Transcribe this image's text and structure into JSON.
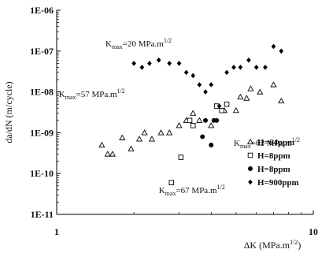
{
  "chart_data": {
    "type": "scatter",
    "xscale": "log",
    "yscale": "log",
    "xlim": [
      1,
      10
    ],
    "ylim": [
      1e-11,
      1e-06
    ],
    "xlabel": "ΔK (MPa.m",
    "xlabel_sup": "1/2",
    "xlabel_end": ")",
    "ylabel": "da/dN (m/cycle)",
    "x_ticks": [
      {
        "value": 1,
        "label": "1"
      },
      {
        "value": 10,
        "label": "10"
      }
    ],
    "y_ticks": [
      {
        "value": 1e-06,
        "label": "1E-06"
      },
      {
        "value": 1e-07,
        "label": "1E-07"
      },
      {
        "value": 1e-08,
        "label": "1E-08"
      },
      {
        "value": 1e-09,
        "label": "1E-09"
      },
      {
        "value": 1e-10,
        "label": "1E-10"
      },
      {
        "value": 1e-11,
        "label": "1E-11"
      }
    ],
    "grid": false,
    "legend_position": "bottom-right",
    "annotations": [
      {
        "main": "K",
        "sub": "max",
        "rest": "=20 MPa.m",
        "sup": "1/2",
        "x": 1.55,
        "y": 1.3e-07
      },
      {
        "main": "K",
        "sub": "max",
        "rest": "=57 MPa.m",
        "sup": "1/2",
        "x": 1.02,
        "y": 7.5e-09
      },
      {
        "main": "K",
        "sub": "max",
        "rest": "=62 MPa.m",
        "sup": "1/2",
        "x": 4.9,
        "y": 4.8e-10
      },
      {
        "main": "K",
        "sub": "max",
        "rest": "=67 MPa.m",
        "sup": "1/2",
        "x": 2.5,
        "y": 3.3e-11
      }
    ],
    "series": [
      {
        "name": "H=64ppm",
        "marker": "triangle-open",
        "x": [
          1.5,
          1.58,
          1.65,
          1.8,
          1.95,
          2.1,
          2.2,
          2.35,
          2.55,
          2.75,
          3.0,
          3.2,
          3.4,
          3.6,
          4.0,
          4.5,
          5.0,
          5.2,
          5.5,
          5.7,
          6.2,
          7.0,
          7.5
        ],
        "y": [
          5e-10,
          3e-10,
          3e-10,
          7.5e-10,
          4e-10,
          7e-10,
          1e-09,
          7e-10,
          1e-09,
          1e-09,
          1.5e-09,
          2e-09,
          3e-09,
          2e-09,
          1.5e-09,
          3.5e-09,
          3.5e-09,
          7.5e-09,
          7e-09,
          1.2e-08,
          1e-08,
          1.5e-08,
          6e-09
        ]
      },
      {
        "name": "H=8ppm",
        "marker": "square-open",
        "x": [
          2.8,
          3.05,
          3.3,
          3.4,
          4.2,
          4.4,
          4.6
        ],
        "y": [
          6e-11,
          2.5e-10,
          2e-09,
          1.5e-09,
          4.5e-09,
          3.5e-09,
          5e-09
        ]
      },
      {
        "name": "H=8ppm",
        "marker": "circle-filled",
        "x": [
          3.7,
          3.8,
          4.0,
          4.1,
          4.2
        ],
        "y": [
          8e-10,
          2e-09,
          5e-10,
          2e-09,
          2e-09
        ]
      },
      {
        "name": "H=900ppm",
        "marker": "diamond-filled",
        "x": [
          2.0,
          2.15,
          2.3,
          2.5,
          2.75,
          3.0,
          3.2,
          3.4,
          3.6,
          3.8,
          4.0,
          4.3,
          4.6,
          4.9,
          5.2,
          5.6,
          6.0,
          6.5,
          7.0,
          7.5
        ],
        "y": [
          5e-08,
          4e-08,
          5e-08,
          6e-08,
          5e-08,
          5e-08,
          3e-08,
          2.5e-08,
          1.5e-08,
          1e-08,
          1.5e-08,
          4.5e-09,
          3e-08,
          4e-08,
          4e-08,
          6e-08,
          4e-08,
          4e-08,
          1.3e-07,
          1e-07
        ]
      }
    ]
  }
}
